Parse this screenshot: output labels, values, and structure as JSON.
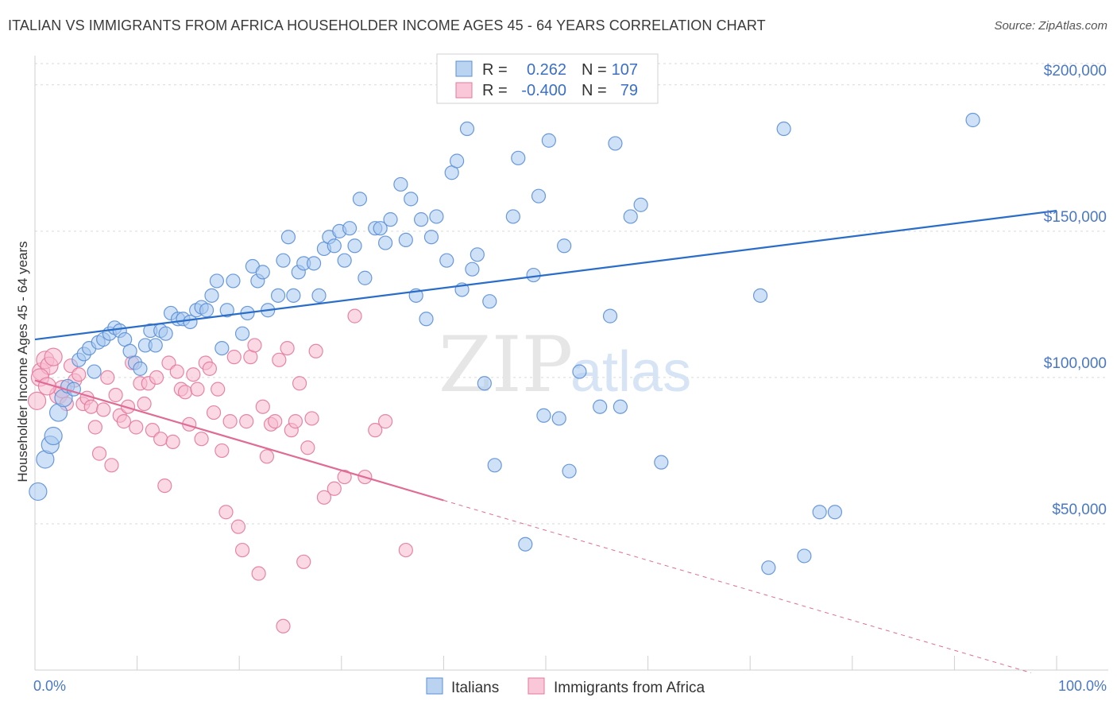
{
  "title": "ITALIAN VS IMMIGRANTS FROM AFRICA HOUSEHOLDER INCOME AGES 45 - 64 YEARS CORRELATION CHART",
  "source": "Source: ZipAtlas.com",
  "watermark": {
    "zip": "ZIP",
    "atlas": "atlas"
  },
  "colors": {
    "italians_fill": "#a8c8ee",
    "italians_stroke": "#5b8fd6",
    "italians_line": "#2a6dc9",
    "africa_fill": "#f7b9cd",
    "africa_stroke": "#e3799c",
    "africa_line": "#e06b95",
    "grid": "#d9d9d9",
    "axis_text": "#4a78c4"
  },
  "legend": {
    "rows": [
      {
        "r_label": "R =",
        "r_value": "0.262",
        "n_label": "N =",
        "n_value": "107"
      },
      {
        "r_label": "R =",
        "r_value": "-0.400",
        "n_label": "N =",
        "n_value": "79"
      }
    ]
  },
  "bottom_legend": [
    "Italians",
    "Immigrants from Africa"
  ],
  "chart_data": {
    "type": "scatter",
    "xlabel": "",
    "ylabel": "Householder Income Ages 45 - 64 years",
    "xlim": [
      0,
      100
    ],
    "ylim": [
      0,
      210000
    ],
    "x_tick_labels": [
      "0.0%",
      "100.0%"
    ],
    "y_ticks": [
      50000,
      100000,
      150000,
      200000
    ],
    "y_tick_labels": [
      "$50,000",
      "$100,000",
      "$150,000",
      "$200,000"
    ],
    "grid": true,
    "legend_position": "top-center",
    "series": [
      {
        "name": "Italians",
        "trend": {
          "x": [
            0,
            100
          ],
          "y": [
            113000,
            157000
          ]
        },
        "points": [
          [
            0.3,
            61000
          ],
          [
            1.0,
            72000
          ],
          [
            1.5,
            77000
          ],
          [
            1.8,
            80000
          ],
          [
            2.3,
            88000
          ],
          [
            2.8,
            93000
          ],
          [
            3.2,
            97000
          ],
          [
            3.8,
            96000
          ],
          [
            4.3,
            106000
          ],
          [
            4.8,
            108000
          ],
          [
            5.3,
            110000
          ],
          [
            5.8,
            102000
          ],
          [
            6.2,
            112000
          ],
          [
            6.7,
            113000
          ],
          [
            7.3,
            115000
          ],
          [
            7.8,
            117000
          ],
          [
            8.3,
            116000
          ],
          [
            8.8,
            113000
          ],
          [
            9.3,
            109000
          ],
          [
            9.8,
            105000
          ],
          [
            10.3,
            103000
          ],
          [
            10.8,
            111000
          ],
          [
            11.3,
            116000
          ],
          [
            11.8,
            111000
          ],
          [
            12.3,
            116000
          ],
          [
            12.8,
            115000
          ],
          [
            13.3,
            122000
          ],
          [
            14.0,
            120000
          ],
          [
            14.5,
            120000
          ],
          [
            15.2,
            119000
          ],
          [
            15.8,
            123000
          ],
          [
            16.3,
            124000
          ],
          [
            16.8,
            123000
          ],
          [
            17.3,
            128000
          ],
          [
            17.8,
            133000
          ],
          [
            18.3,
            110000
          ],
          [
            18.8,
            123000
          ],
          [
            19.4,
            133000
          ],
          [
            20.3,
            115000
          ],
          [
            20.8,
            122000
          ],
          [
            21.3,
            138000
          ],
          [
            21.8,
            133000
          ],
          [
            22.3,
            136000
          ],
          [
            22.8,
            123000
          ],
          [
            23.8,
            128000
          ],
          [
            24.3,
            140000
          ],
          [
            24.8,
            148000
          ],
          [
            25.3,
            128000
          ],
          [
            25.8,
            136000
          ],
          [
            26.3,
            139000
          ],
          [
            27.3,
            139000
          ],
          [
            27.8,
            128000
          ],
          [
            28.3,
            144000
          ],
          [
            28.8,
            148000
          ],
          [
            29.3,
            145000
          ],
          [
            29.8,
            150000
          ],
          [
            30.3,
            140000
          ],
          [
            30.8,
            151000
          ],
          [
            31.3,
            145000
          ],
          [
            31.8,
            161000
          ],
          [
            32.3,
            134000
          ],
          [
            33.3,
            151000
          ],
          [
            33.8,
            151000
          ],
          [
            34.3,
            146000
          ],
          [
            34.8,
            154000
          ],
          [
            35.8,
            166000
          ],
          [
            36.3,
            147000
          ],
          [
            36.8,
            161000
          ],
          [
            37.3,
            128000
          ],
          [
            37.8,
            154000
          ],
          [
            38.3,
            120000
          ],
          [
            38.8,
            148000
          ],
          [
            39.3,
            155000
          ],
          [
            40.3,
            140000
          ],
          [
            40.8,
            170000
          ],
          [
            41.3,
            174000
          ],
          [
            41.8,
            130000
          ],
          [
            42.3,
            185000
          ],
          [
            42.8,
            137000
          ],
          [
            43.3,
            142000
          ],
          [
            44.0,
            98000
          ],
          [
            44.5,
            126000
          ],
          [
            45.0,
            70000
          ],
          [
            46.8,
            155000
          ],
          [
            47.3,
            175000
          ],
          [
            48.0,
            43000
          ],
          [
            48.8,
            135000
          ],
          [
            49.3,
            162000
          ],
          [
            49.8,
            87000
          ],
          [
            50.3,
            181000
          ],
          [
            51.3,
            86000
          ],
          [
            51.8,
            145000
          ],
          [
            52.3,
            68000
          ],
          [
            53.3,
            102000
          ],
          [
            55.3,
            90000
          ],
          [
            56.3,
            121000
          ],
          [
            56.8,
            180000
          ],
          [
            57.3,
            90000
          ],
          [
            58.3,
            155000
          ],
          [
            59.3,
            159000
          ],
          [
            61.3,
            71000
          ],
          [
            71.0,
            128000
          ],
          [
            71.8,
            35000
          ],
          [
            73.3,
            185000
          ],
          [
            75.3,
            39000
          ],
          [
            76.8,
            54000
          ],
          [
            78.3,
            54000
          ],
          [
            91.8,
            188000
          ]
        ]
      },
      {
        "name": "Immigrants from Africa",
        "trend": {
          "x": [
            0,
            40
          ],
          "y": [
            99000,
            58000
          ]
        },
        "points": [
          [
            0.2,
            92000
          ],
          [
            0.6,
            102000
          ],
          [
            1.0,
            106000
          ],
          [
            1.4,
            104000
          ],
          [
            1.8,
            107000
          ],
          [
            2.3,
            94000
          ],
          [
            2.7,
            96000
          ],
          [
            3.1,
            91000
          ],
          [
            3.5,
            104000
          ],
          [
            3.9,
            99000
          ],
          [
            4.3,
            101000
          ],
          [
            4.7,
            91000
          ],
          [
            5.1,
            93000
          ],
          [
            5.5,
            90000
          ],
          [
            5.9,
            83000
          ],
          [
            6.3,
            74000
          ],
          [
            6.7,
            89000
          ],
          [
            7.1,
            100000
          ],
          [
            7.5,
            70000
          ],
          [
            7.9,
            94000
          ],
          [
            8.3,
            87000
          ],
          [
            8.7,
            85000
          ],
          [
            9.1,
            90000
          ],
          [
            9.5,
            105000
          ],
          [
            9.9,
            83000
          ],
          [
            10.3,
            98000
          ],
          [
            10.7,
            91000
          ],
          [
            11.1,
            98000
          ],
          [
            11.5,
            82000
          ],
          [
            11.9,
            100000
          ],
          [
            12.3,
            79000
          ],
          [
            12.7,
            63000
          ],
          [
            13.1,
            105000
          ],
          [
            13.5,
            78000
          ],
          [
            13.9,
            102000
          ],
          [
            14.3,
            96000
          ],
          [
            14.7,
            95000
          ],
          [
            15.1,
            84000
          ],
          [
            15.5,
            101000
          ],
          [
            15.9,
            96000
          ],
          [
            16.3,
            79000
          ],
          [
            16.7,
            105000
          ],
          [
            17.1,
            103000
          ],
          [
            17.5,
            88000
          ],
          [
            17.9,
            96000
          ],
          [
            18.3,
            75000
          ],
          [
            18.7,
            54000
          ],
          [
            19.1,
            85000
          ],
          [
            19.5,
            107000
          ],
          [
            19.9,
            49000
          ],
          [
            20.3,
            41000
          ],
          [
            20.7,
            85000
          ],
          [
            21.1,
            107000
          ],
          [
            21.5,
            111000
          ],
          [
            21.9,
            33000
          ],
          [
            22.3,
            90000
          ],
          [
            22.7,
            73000
          ],
          [
            23.1,
            84000
          ],
          [
            23.5,
            85000
          ],
          [
            23.9,
            106000
          ],
          [
            24.3,
            15000
          ],
          [
            24.7,
            110000
          ],
          [
            25.1,
            82000
          ],
          [
            25.5,
            85000
          ],
          [
            25.9,
            98000
          ],
          [
            26.3,
            37000
          ],
          [
            26.7,
            76000
          ],
          [
            27.1,
            86000
          ],
          [
            27.5,
            109000
          ],
          [
            28.3,
            59000
          ],
          [
            29.3,
            62000
          ],
          [
            30.3,
            66000
          ],
          [
            31.3,
            121000
          ],
          [
            32.3,
            66000
          ],
          [
            33.3,
            82000
          ],
          [
            34.3,
            85000
          ],
          [
            36.3,
            41000
          ],
          [
            0.5,
            100000
          ],
          [
            1.2,
            97000
          ]
        ]
      }
    ]
  }
}
